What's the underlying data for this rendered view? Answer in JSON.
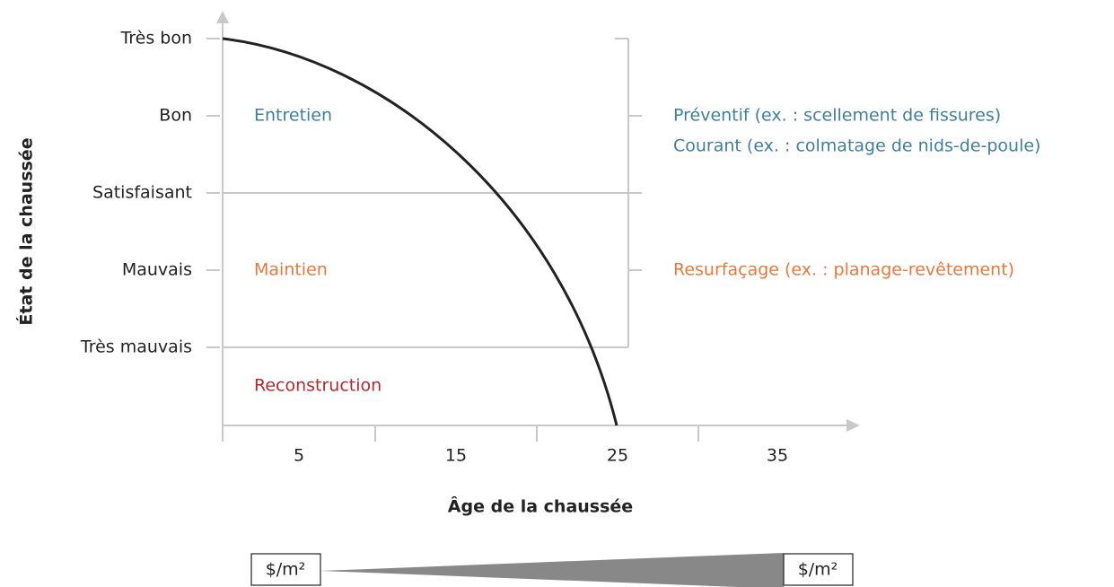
{
  "y_axis": {
    "title": "État de la chaussée",
    "levels": [
      "Très bon",
      "Bon",
      "Satisfaisant",
      "Mauvais",
      "Très mauvais"
    ]
  },
  "x_axis": {
    "title": "Âge de la chaussée",
    "labels": [
      "5",
      "15",
      "25",
      "35"
    ]
  },
  "zones": [
    "Entretien",
    "Maintien",
    "Reconstruction"
  ],
  "treatments": [
    "Préventif (ex. : scellement de fissures)",
    "Courant (ex. : colmatage de nids-de-poule)",
    "Resurfaçage (ex. : planage-revêtement)"
  ],
  "cost": {
    "low": "$/m²",
    "high": "$/m²"
  }
}
